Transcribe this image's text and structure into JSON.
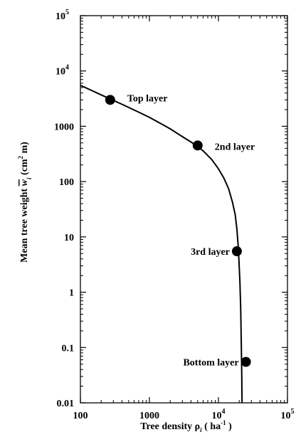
{
  "chart_data": {
    "type": "scatter",
    "title": "",
    "xlabel": {
      "main": "Tree density ρ",
      "sub": "i",
      "unit_open": "( ha",
      "unit_sup": "-1",
      "unit_close": " )"
    },
    "ylabel": {
      "main": "Mean tree weight",
      "symbol": "w",
      "sub": "i",
      "unit_open": "(cm",
      "unit_sup": "2",
      "unit_close": " m)"
    },
    "x_scale": "log",
    "y_scale": "log",
    "xlim": [
      100,
      100000
    ],
    "ylim": [
      0.01,
      100000
    ],
    "x_ticks": [
      {
        "value": 100,
        "label": "100"
      },
      {
        "value": 1000,
        "label": "1000"
      },
      {
        "value": 10000,
        "base": "10",
        "exp": "4"
      },
      {
        "value": 100000,
        "base": "10",
        "exp": "5"
      }
    ],
    "y_ticks": [
      {
        "value": 0.01,
        "label": "0.01"
      },
      {
        "value": 0.1,
        "label": "0.1"
      },
      {
        "value": 1,
        "label": "1"
      },
      {
        "value": 10,
        "label": "10"
      },
      {
        "value": 100,
        "label": "100"
      },
      {
        "value": 1000,
        "label": "1000"
      },
      {
        "value": 10000,
        "base": "10",
        "exp": "4"
      },
      {
        "value": 100000,
        "base": "10",
        "exp": "5"
      }
    ],
    "points": [
      {
        "label": "Top layer",
        "x": 270,
        "y": 3000
      },
      {
        "label": "2nd layer",
        "x": 5000,
        "y": 450
      },
      {
        "label": "3rd layer",
        "x": 18500,
        "y": 5.5
      },
      {
        "label": "Bottom layer",
        "x": 25000,
        "y": 0.055
      }
    ],
    "curve": {
      "x": [
        100,
        200,
        400,
        700,
        1000,
        1500,
        2000,
        3000,
        4000,
        5000,
        6000,
        8000,
        10000,
        12000,
        14000,
        16000,
        17500,
        18500,
        19500,
        20500,
        21000,
        21500,
        21800,
        21900,
        22000
      ],
      "y": [
        5500,
        3700,
        2500,
        1800,
        1450,
        1100,
        900,
        650,
        520,
        430,
        360,
        250,
        170,
        115,
        75,
        42,
        25,
        14,
        6,
        1.5,
        0.5,
        0.1,
        0.03,
        0.015,
        0.01
      ]
    },
    "grid": false,
    "legend": "none"
  }
}
